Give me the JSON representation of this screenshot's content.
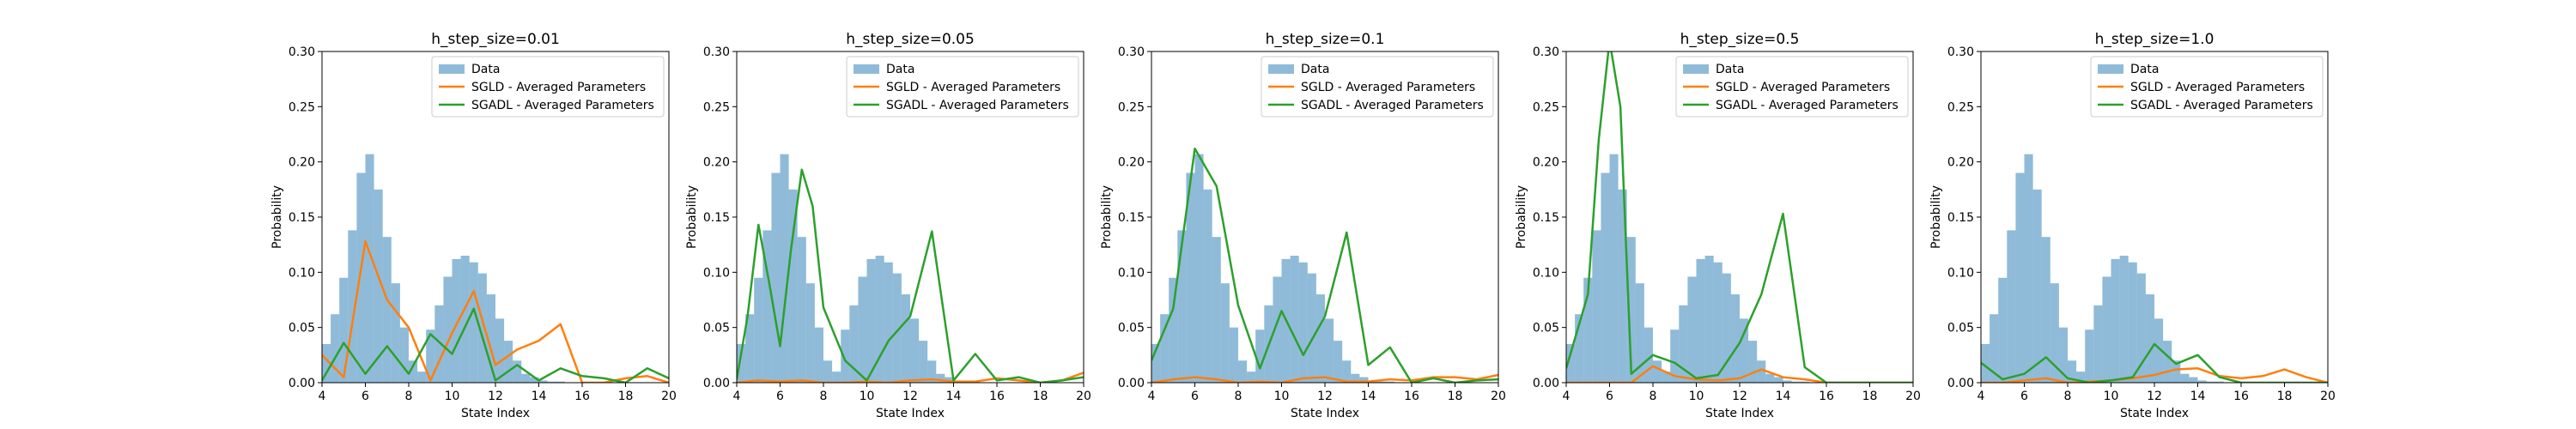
{
  "colors": {
    "data_bar": "#1f77b4",
    "sgld_line": "#ff7f0e",
    "sgadl_line": "#2ca02c"
  },
  "legend": {
    "placement": "top-right",
    "entries": [
      "Data",
      "SGLD - Averaged Parameters",
      "SGADL - Averaged Parameters"
    ]
  },
  "chart_data": [
    {
      "type": "bar",
      "title": "h_step_size=0.01",
      "xlabel": "State Index",
      "ylabel": "Probability",
      "xlim": [
        4,
        20
      ],
      "ylim": [
        0,
        0.3
      ],
      "xticks": [
        4,
        6,
        8,
        10,
        12,
        14,
        16,
        18,
        20
      ],
      "yticks": [
        0.0,
        0.05,
        0.1,
        0.15,
        0.2,
        0.25,
        0.3
      ],
      "histogram": {
        "name": "Data",
        "bin_start": 4.0,
        "bin_width": 0.4,
        "heights": [
          0.035,
          0.062,
          0.095,
          0.138,
          0.19,
          0.207,
          0.175,
          0.132,
          0.09,
          0.05,
          0.02,
          0.01,
          0.048,
          0.07,
          0.096,
          0.112,
          0.115,
          0.109,
          0.099,
          0.08,
          0.058,
          0.038,
          0.02,
          0.008,
          0.005,
          0.002,
          0.001,
          0.001,
          0.0,
          0.0,
          0.0,
          0.0,
          0.0,
          0.0,
          0.0,
          0.0,
          0.0,
          0.0,
          0.0,
          0.0
        ]
      },
      "series": [
        {
          "name": "SGLD - Averaged Parameters",
          "x": [
            4,
            5,
            6,
            7,
            8,
            9,
            10,
            11,
            12,
            13,
            14,
            15,
            16,
            17,
            18,
            19,
            20
          ],
          "y": [
            0.025,
            0.005,
            0.128,
            0.075,
            0.05,
            0.002,
            0.045,
            0.083,
            0.016,
            0.03,
            0.038,
            0.053,
            0.0,
            0.0,
            0.004,
            0.006,
            0.0
          ]
        },
        {
          "name": "SGADL - Averaged Parameters",
          "x": [
            4,
            5,
            6,
            7,
            8,
            9,
            10,
            11,
            12,
            13,
            14,
            15,
            16,
            17,
            18,
            19,
            20
          ],
          "y": [
            0.002,
            0.036,
            0.008,
            0.033,
            0.008,
            0.044,
            0.026,
            0.067,
            0.002,
            0.016,
            0.002,
            0.013,
            0.006,
            0.004,
            0.0,
            0.013,
            0.004
          ]
        }
      ]
    },
    {
      "type": "bar",
      "title": "h_step_size=0.05",
      "xlabel": "State Index",
      "ylabel": "Probability",
      "xlim": [
        4,
        20
      ],
      "ylim": [
        0,
        0.3
      ],
      "xticks": [
        4,
        6,
        8,
        10,
        12,
        14,
        16,
        18,
        20
      ],
      "yticks": [
        0.0,
        0.05,
        0.1,
        0.15,
        0.2,
        0.25,
        0.3
      ],
      "histogram": {
        "name": "Data",
        "bin_start": 4.0,
        "bin_width": 0.4,
        "heights": [
          0.035,
          0.062,
          0.095,
          0.138,
          0.19,
          0.207,
          0.175,
          0.132,
          0.09,
          0.05,
          0.02,
          0.01,
          0.048,
          0.07,
          0.096,
          0.112,
          0.115,
          0.109,
          0.099,
          0.08,
          0.058,
          0.038,
          0.02,
          0.008,
          0.005,
          0.002,
          0.001,
          0.001,
          0.0,
          0.0,
          0.0,
          0.0,
          0.0,
          0.0,
          0.0,
          0.0,
          0.0,
          0.0,
          0.0,
          0.0
        ]
      },
      "series": [
        {
          "name": "SGLD - Averaged Parameters",
          "x": [
            4,
            5,
            6,
            7,
            8,
            9,
            10,
            11,
            12,
            13,
            14,
            15,
            16,
            17,
            18,
            19,
            20
          ],
          "y": [
            0.0,
            0.002,
            0.001,
            0.002,
            0.0,
            0.0,
            0.001,
            0.0,
            0.002,
            0.003,
            0.001,
            0.001,
            0.004,
            0.002,
            0.0,
            0.002,
            0.009
          ]
        },
        {
          "name": "SGADL - Averaged Parameters",
          "x": [
            4,
            4.5,
            5,
            5.5,
            6,
            6.5,
            7,
            7.5,
            8,
            9,
            10,
            11,
            12,
            13,
            14,
            15,
            16,
            17,
            18,
            19,
            20
          ],
          "y": [
            0.003,
            0.06,
            0.143,
            0.09,
            0.033,
            0.12,
            0.193,
            0.16,
            0.068,
            0.02,
            0.002,
            0.038,
            0.06,
            0.137,
            0.002,
            0.026,
            0.002,
            0.005,
            0.0,
            0.002,
            0.005
          ]
        }
      ]
    },
    {
      "type": "bar",
      "title": "h_step_size=0.1",
      "xlabel": "State Index",
      "ylabel": "Probability",
      "xlim": [
        4,
        20
      ],
      "ylim": [
        0,
        0.3
      ],
      "xticks": [
        4,
        6,
        8,
        10,
        12,
        14,
        16,
        18,
        20
      ],
      "yticks": [
        0.0,
        0.05,
        0.1,
        0.15,
        0.2,
        0.25,
        0.3
      ],
      "histogram": {
        "name": "Data",
        "bin_start": 4.0,
        "bin_width": 0.4,
        "heights": [
          0.035,
          0.062,
          0.095,
          0.138,
          0.19,
          0.207,
          0.175,
          0.132,
          0.09,
          0.05,
          0.02,
          0.01,
          0.048,
          0.07,
          0.096,
          0.112,
          0.115,
          0.109,
          0.099,
          0.08,
          0.058,
          0.038,
          0.02,
          0.008,
          0.005,
          0.002,
          0.001,
          0.001,
          0.0,
          0.0,
          0.0,
          0.0,
          0.0,
          0.0,
          0.0,
          0.0,
          0.0,
          0.0,
          0.0,
          0.0
        ]
      },
      "series": [
        {
          "name": "SGLD - Averaged Parameters",
          "x": [
            4,
            5,
            6,
            7,
            8,
            9,
            10,
            11,
            12,
            13,
            14,
            15,
            16,
            17,
            18,
            19,
            20
          ],
          "y": [
            0.0,
            0.003,
            0.005,
            0.003,
            0.0,
            0.001,
            0.0,
            0.004,
            0.005,
            0.001,
            0.001,
            0.003,
            0.002,
            0.005,
            0.005,
            0.003,
            0.007
          ]
        },
        {
          "name": "SGADL - Averaged Parameters",
          "x": [
            4,
            5,
            6,
            7,
            8,
            9,
            10,
            11,
            12,
            13,
            14,
            15,
            16,
            17,
            18,
            19,
            20
          ],
          "y": [
            0.02,
            0.067,
            0.212,
            0.178,
            0.07,
            0.013,
            0.065,
            0.025,
            0.06,
            0.136,
            0.016,
            0.032,
            0.0,
            0.004,
            0.0,
            0.002,
            0.003
          ]
        }
      ]
    },
    {
      "type": "bar",
      "title": "h_step_size=0.5",
      "xlabel": "State Index",
      "ylabel": "Probability",
      "xlim": [
        4,
        20
      ],
      "ylim": [
        0,
        0.3
      ],
      "xticks": [
        4,
        6,
        8,
        10,
        12,
        14,
        16,
        18,
        20
      ],
      "yticks": [
        0.0,
        0.05,
        0.1,
        0.15,
        0.2,
        0.25,
        0.3
      ],
      "histogram": {
        "name": "Data",
        "bin_start": 4.0,
        "bin_width": 0.4,
        "heights": [
          0.035,
          0.062,
          0.095,
          0.138,
          0.19,
          0.207,
          0.175,
          0.132,
          0.09,
          0.05,
          0.02,
          0.01,
          0.048,
          0.07,
          0.096,
          0.112,
          0.115,
          0.109,
          0.099,
          0.08,
          0.058,
          0.038,
          0.02,
          0.008,
          0.005,
          0.002,
          0.001,
          0.001,
          0.0,
          0.0,
          0.0,
          0.0,
          0.0,
          0.0,
          0.0,
          0.0,
          0.0,
          0.0,
          0.0,
          0.0
        ]
      },
      "series": [
        {
          "name": "SGLD - Averaged Parameters",
          "x": [
            4,
            5,
            6,
            7,
            8,
            9,
            10,
            11,
            12,
            13,
            14,
            15,
            16,
            17,
            18,
            19,
            20
          ],
          "y": [
            0.0,
            0.0,
            0.0,
            0.0,
            0.015,
            0.006,
            0.003,
            0.002,
            0.004,
            0.012,
            0.005,
            0.003,
            0.0,
            0.0,
            0.0,
            0.0,
            0.0
          ]
        },
        {
          "name": "SGADL - Averaged Parameters",
          "x": [
            4,
            5,
            5.5,
            6,
            6.5,
            7,
            8,
            9,
            10,
            11,
            12,
            13,
            14,
            15,
            16,
            17,
            18,
            19,
            20
          ],
          "y": [
            0.013,
            0.08,
            0.22,
            0.31,
            0.25,
            0.008,
            0.025,
            0.018,
            0.004,
            0.007,
            0.036,
            0.08,
            0.153,
            0.014,
            0.0,
            0.0,
            0.0,
            0.0,
            0.0
          ]
        }
      ]
    },
    {
      "type": "bar",
      "title": "h_step_size=1.0",
      "xlabel": "State Index",
      "ylabel": "Probability",
      "xlim": [
        4,
        20
      ],
      "ylim": [
        0,
        0.3
      ],
      "xticks": [
        4,
        6,
        8,
        10,
        12,
        14,
        16,
        18,
        20
      ],
      "yticks": [
        0.0,
        0.05,
        0.1,
        0.15,
        0.2,
        0.25,
        0.3
      ],
      "histogram": {
        "name": "Data",
        "bin_start": 4.0,
        "bin_width": 0.4,
        "heights": [
          0.035,
          0.062,
          0.095,
          0.138,
          0.19,
          0.207,
          0.175,
          0.132,
          0.09,
          0.05,
          0.02,
          0.01,
          0.048,
          0.07,
          0.096,
          0.112,
          0.115,
          0.109,
          0.099,
          0.08,
          0.058,
          0.038,
          0.02,
          0.008,
          0.005,
          0.002,
          0.001,
          0.001,
          0.0,
          0.0,
          0.0,
          0.0,
          0.0,
          0.0,
          0.0,
          0.0,
          0.0,
          0.0,
          0.0,
          0.0
        ]
      },
      "series": [
        {
          "name": "SGLD - Averaged Parameters",
          "x": [
            4,
            5,
            6,
            7,
            8,
            9,
            10,
            11,
            12,
            13,
            14,
            15,
            16,
            17,
            18,
            19,
            20
          ],
          "y": [
            0.0,
            0.0,
            0.002,
            0.004,
            0.0,
            0.001,
            0.002,
            0.004,
            0.007,
            0.012,
            0.013,
            0.006,
            0.004,
            0.006,
            0.012,
            0.005,
            0.0
          ]
        },
        {
          "name": "SGADL - Averaged Parameters",
          "x": [
            4,
            5,
            6,
            7,
            8,
            9,
            10,
            11,
            12,
            13,
            14,
            15,
            16,
            17,
            18,
            19,
            20
          ],
          "y": [
            0.018,
            0.003,
            0.008,
            0.023,
            0.004,
            0.0,
            0.002,
            0.005,
            0.035,
            0.017,
            0.025,
            0.005,
            0.0,
            0.0,
            0.0,
            0.0,
            0.0
          ]
        }
      ]
    }
  ]
}
